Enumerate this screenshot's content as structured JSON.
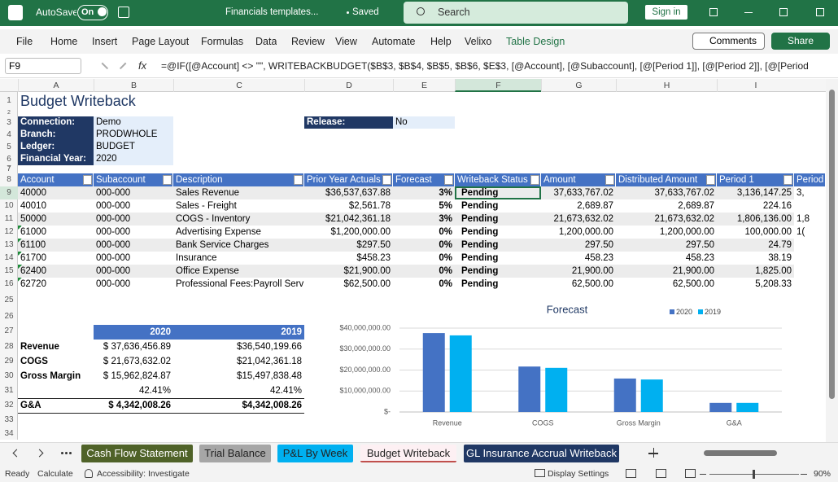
{
  "title_bar": {
    "autosave": "AutoSave",
    "toggle": "On",
    "file_name": "Financials templates...",
    "save_status": "Saved",
    "search": "Search",
    "sign_in": "Sign in"
  },
  "ribbon": {
    "tabs": [
      "File",
      "Home",
      "Insert",
      "Page Layout",
      "Formulas",
      "Data",
      "Review",
      "View",
      "Automate",
      "Help",
      "Velixo",
      "Table Design"
    ],
    "comments": "Comments",
    "share": "Share"
  },
  "formula_bar": {
    "name_box": "F9",
    "fx": "fx",
    "formula": "=@IF([@Account] <> \"\", WRITEBACKBUDGET($B$3, $B$4, $B$5, $B$6, $E$3, [@Account], [@Subaccount], [@[Period 1]], [@[Period 2]], [@[Period"
  },
  "columns": [
    "A",
    "B",
    "C",
    "D",
    "E",
    "F",
    "G",
    "H",
    "I"
  ],
  "rows": [
    1,
    2,
    3,
    4,
    5,
    6,
    7,
    8,
    9,
    10,
    11,
    12,
    13,
    14,
    15,
    16,
    25,
    26,
    27,
    28,
    29,
    30,
    31,
    32,
    33,
    34
  ],
  "sheet": {
    "title": "Budget Writeback",
    "info": [
      {
        "label": "Connection:",
        "value": "Demo"
      },
      {
        "label": "Branch:",
        "value": "PRODWHOLE"
      },
      {
        "label": "Ledger:",
        "value": "BUDGET"
      },
      {
        "label": "Financial Year:",
        "value": "2020"
      }
    ],
    "release": {
      "label": "Release:",
      "value": "No"
    }
  },
  "table": {
    "headers": [
      "Account",
      "Subaccount",
      "Description",
      "Prior Year Actuals",
      "Forecast",
      "Writeback Status",
      "Amount",
      "Distributed Amount",
      "Period 1",
      "Period"
    ],
    "rows": [
      [
        "40000",
        "000-000",
        "Sales Revenue",
        "$36,537,637.88",
        "3%",
        "Pending",
        "37,633,767.02",
        "37,633,767.02",
        "3,136,147.25",
        "3,"
      ],
      [
        "40010",
        "000-000",
        "Sales - Freight",
        "$2,561.78",
        "5%",
        "Pending",
        "2,689.87",
        "2,689.87",
        "224.16"
      ],
      [
        "50000",
        "000-000",
        "COGS - Inventory",
        "$21,042,361.18",
        "3%",
        "Pending",
        "21,673,632.02",
        "21,673,632.02",
        "1,806,136.00",
        "1,8"
      ],
      [
        "61000",
        "000-000",
        "Advertising Expense",
        "$1,200,000.00",
        "0%",
        "Pending",
        "1,200,000.00",
        "1,200,000.00",
        "100,000.00",
        "1("
      ],
      [
        "61100",
        "000-000",
        "Bank Service Charges",
        "$297.50",
        "0%",
        "Pending",
        "297.50",
        "297.50",
        "24.79"
      ],
      [
        "61700",
        "000-000",
        "Insurance",
        "$458.23",
        "0%",
        "Pending",
        "458.23",
        "458.23",
        "38.19"
      ],
      [
        "62400",
        "000-000",
        "Office Expense",
        "$21,900.00",
        "0%",
        "Pending",
        "21,900.00",
        "21,900.00",
        "1,825.00"
      ],
      [
        "62720",
        "000-000",
        "Professional Fees:Payroll Servi",
        "$62,500.00",
        "0%",
        "Pending",
        "62,500.00",
        "62,500.00",
        "5,208.33"
      ]
    ]
  },
  "summary": {
    "headers": [
      "2020",
      "2019"
    ],
    "rows": [
      {
        "label": "Revenue",
        "values": [
          "$ 37,636,456.89",
          "$36,540,199.66"
        ]
      },
      {
        "label": "COGS",
        "values": [
          "$ 21,673,632.02",
          "$21,042,361.18"
        ]
      },
      {
        "label": "Gross Margin",
        "values": [
          "$ 15,962,824.87",
          "$15,497,838.48"
        ]
      },
      {
        "values": [
          "42.41%",
          "42.41%"
        ]
      },
      {
        "label": "G&A",
        "values": [
          "$ 4,342,008.26",
          "$4,342,008.26"
        ]
      }
    ]
  },
  "chart_data": {
    "type": "bar",
    "title": "Forecast",
    "categories": [
      "Revenue",
      "COGS",
      "Gross Margin",
      "G&A"
    ],
    "series": [
      {
        "name": "2020",
        "color": "#4472c4",
        "values": [
          37636456.89,
          21673632.02,
          15962824.87,
          4342008.26
        ]
      },
      {
        "name": "2019",
        "color": "#00b0f0",
        "values": [
          36540199.66,
          21042361.18,
          15497838.48,
          4342008.26
        ]
      }
    ],
    "ylim": [
      0,
      40000000
    ],
    "yticks": [
      {
        "value": 0,
        "label": "$-"
      },
      {
        "value": 10000000,
        "label": "$10,000,000.00"
      },
      {
        "value": 20000000,
        "label": "$20,000,000.00"
      },
      {
        "value": 30000000,
        "label": "$30,000,000.00"
      },
      {
        "value": 40000000,
        "label": "$40,000,000.00"
      }
    ],
    "grid": true,
    "legend": "top"
  },
  "sheet_tabs": [
    "Cash Flow Statement",
    "Trial Balance",
    "P&L By Week",
    "Budget Writeback",
    "GL Insurance Accrual Writeback"
  ],
  "status_bar": {
    "ready": "Ready",
    "calculate": "Calculate",
    "accessibility": "Accessibility: Investigate",
    "display_settings": "Display Settings",
    "zoom": "90%"
  }
}
